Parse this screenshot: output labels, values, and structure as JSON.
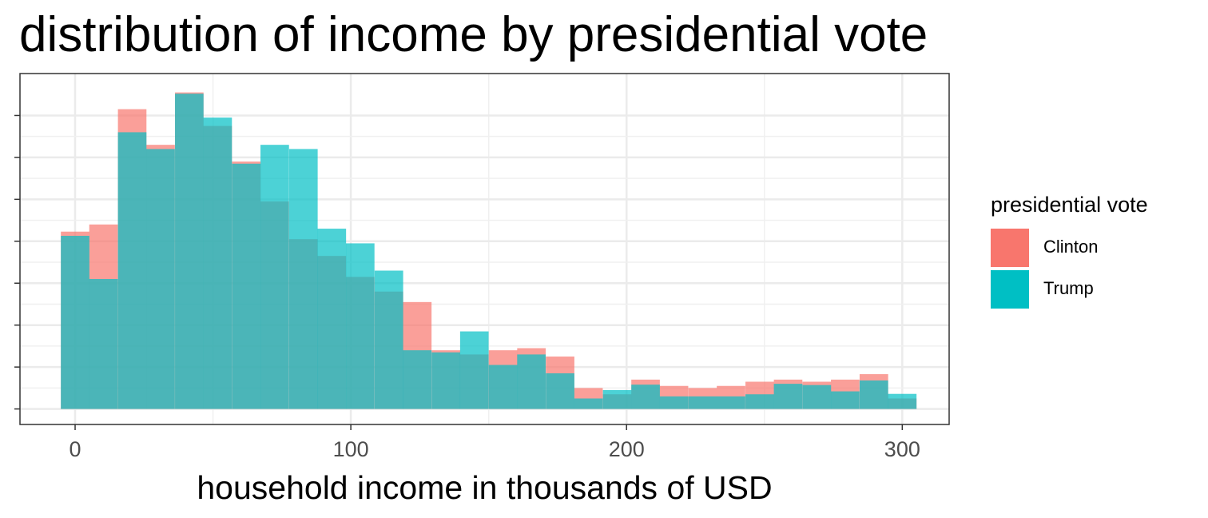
{
  "chart_data": {
    "type": "histogram",
    "title": "distribution of income by presidential vote",
    "xlabel": "household income in thousands of USD",
    "ylabel": "",
    "xlim": [
      -20,
      317
    ],
    "ylim": [
      -0.037,
      0.8
    ],
    "x_ticks": [
      0,
      100,
      200,
      300
    ],
    "y_ticks_unlabeled": [
      0,
      0.1,
      0.2,
      0.3,
      0.4,
      0.5,
      0.6,
      0.7
    ],
    "grid": true,
    "bin_width": 10.345,
    "bin_centers": [
      0,
      10.3,
      20.7,
      31,
      41.4,
      51.7,
      62.1,
      72.4,
      82.8,
      93.1,
      103.4,
      113.8,
      124.1,
      134.5,
      144.8,
      155.2,
      165.5,
      175.9,
      186.2,
      196.6,
      206.9,
      217.2,
      227.6,
      237.9,
      248.3,
      258.6,
      269,
      279.3,
      289.7,
      300
    ],
    "legend": {
      "title": "presidential vote",
      "placement": "right"
    },
    "series": [
      {
        "name": "Clinton",
        "color": "#F8766D",
        "values": [
          0.423,
          0.44,
          0.715,
          0.63,
          0.755,
          0.675,
          0.59,
          0.495,
          0.405,
          0.365,
          0.315,
          0.28,
          0.255,
          0.14,
          0.13,
          0.14,
          0.145,
          0.125,
          0.05,
          0.035,
          0.07,
          0.055,
          0.05,
          0.055,
          0.065,
          0.07,
          0.065,
          0.07,
          0.083,
          0.025
        ]
      },
      {
        "name": "Trump",
        "color": "#00BFC4",
        "values": [
          0.413,
          0.31,
          0.66,
          0.62,
          0.752,
          0.695,
          0.585,
          0.63,
          0.62,
          0.43,
          0.395,
          0.33,
          0.14,
          0.135,
          0.185,
          0.105,
          0.13,
          0.085,
          0.025,
          0.045,
          0.058,
          0.03,
          0.03,
          0.03,
          0.035,
          0.06,
          0.057,
          0.042,
          0.068,
          0.036
        ]
      }
    ]
  }
}
